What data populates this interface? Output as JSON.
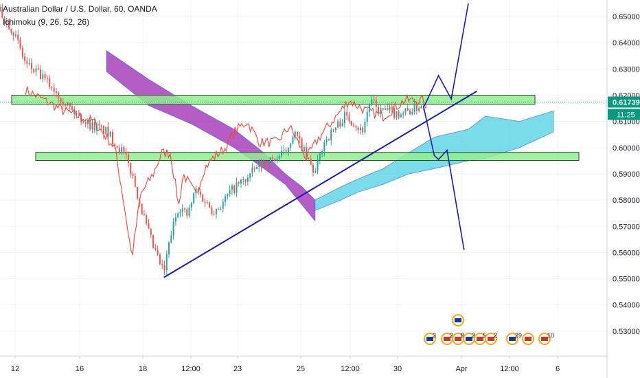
{
  "header": {
    "title": "Australian Dollar / U.S. Dollar, 60, OANDA",
    "indicator": "Ichimoku (9, 26, 52, 26)"
  },
  "price_tag": {
    "price": "0.61739",
    "countdown": "11:25"
  },
  "colors": {
    "candle_up": "#26a69a",
    "candle_down": "#ef5350",
    "cloud_bull": "#4dd0e1",
    "cloud_bear": "#9c27b0",
    "cloud_edge": "#2962ff",
    "lagging": "#f44336",
    "zone_fill": "#90ee90",
    "drawing": "#1a1ab5",
    "price_tag": "#089981",
    "grid": "#f0f3fa"
  },
  "chart_data": {
    "type": "candlestick",
    "symbol": "AUDUSD",
    "interval": "60",
    "y_axis": {
      "min": 0.52,
      "max": 0.655,
      "ticks": [
        "0.65000",
        "0.64000",
        "0.63000",
        "0.62000",
        "0.61000",
        "0.60000",
        "0.59000",
        "0.58000",
        "0.57000",
        "0.56000",
        "0.55000",
        "0.54000",
        "0.53000"
      ]
    },
    "x_axis": {
      "labels": [
        "12",
        "16",
        "18",
        "12:00",
        "23",
        "25",
        "12:00",
        "30",
        "Apr",
        "12:00",
        "6"
      ]
    },
    "last_price": 0.61739,
    "close_path": [
      [
        0,
        0.652
      ],
      [
        0.03,
        0.645
      ],
      [
        0.06,
        0.632
      ],
      [
        0.09,
        0.628
      ],
      [
        0.13,
        0.622
      ],
      [
        0.17,
        0.614
      ],
      [
        0.21,
        0.609
      ],
      [
        0.25,
        0.606
      ],
      [
        0.29,
        0.598
      ],
      [
        0.31,
        0.59
      ],
      [
        0.34,
        0.572
      ],
      [
        0.36,
        0.562
      ],
      [
        0.385,
        0.552
      ],
      [
        0.4,
        0.566
      ],
      [
        0.42,
        0.578
      ],
      [
        0.44,
        0.574
      ],
      [
        0.46,
        0.584
      ],
      [
        0.48,
        0.58
      ],
      [
        0.5,
        0.576
      ],
      [
        0.52,
        0.578
      ],
      [
        0.54,
        0.583
      ],
      [
        0.56,
        0.586
      ],
      [
        0.58,
        0.588
      ],
      [
        0.6,
        0.592
      ],
      [
        0.62,
        0.594
      ],
      [
        0.65,
        0.596
      ],
      [
        0.67,
        0.598
      ],
      [
        0.69,
        0.606
      ],
      [
        0.71,
        0.6
      ],
      [
        0.72,
        0.596
      ],
      [
        0.74,
        0.59
      ],
      [
        0.76,
        0.602
      ],
      [
        0.79,
        0.608
      ],
      [
        0.81,
        0.612
      ],
      [
        0.83,
        0.61
      ],
      [
        0.85,
        0.606
      ],
      [
        0.87,
        0.618
      ],
      [
        0.89,
        0.614
      ],
      [
        0.91,
        0.614
      ],
      [
        0.93,
        0.613
      ],
      [
        0.96,
        0.614
      ],
      [
        1.0,
        0.617
      ]
    ],
    "lagging_path": [
      [
        0.06,
        0.622
      ],
      [
        0.15,
        0.614
      ],
      [
        0.22,
        0.61
      ],
      [
        0.27,
        0.6
      ],
      [
        0.29,
        0.58
      ],
      [
        0.31,
        0.558
      ],
      [
        0.33,
        0.582
      ],
      [
        0.36,
        0.59
      ],
      [
        0.38,
        0.598
      ],
      [
        0.4,
        0.598
      ],
      [
        0.42,
        0.578
      ],
      [
        0.43,
        0.59
      ],
      [
        0.46,
        0.582
      ],
      [
        0.48,
        0.592
      ],
      [
        0.5,
        0.596
      ],
      [
        0.53,
        0.6
      ],
      [
        0.55,
        0.606
      ],
      [
        0.58,
        0.61
      ],
      [
        0.61,
        0.602
      ],
      [
        0.65,
        0.602
      ],
      [
        0.68,
        0.608
      ],
      [
        0.72,
        0.596
      ],
      [
        0.75,
        0.604
      ],
      [
        0.78,
        0.61
      ],
      [
        0.82,
        0.618
      ],
      [
        0.86,
        0.614
      ],
      [
        0.9,
        0.612
      ],
      [
        0.95,
        0.618
      ],
      [
        1.0,
        0.618
      ]
    ],
    "cloud_bear": {
      "upper": [
        [
          0.25,
          0.637
        ],
        [
          0.35,
          0.626
        ],
        [
          0.45,
          0.616
        ],
        [
          0.55,
          0.607
        ],
        [
          0.62,
          0.598
        ],
        [
          0.67,
          0.59
        ],
        [
          0.71,
          0.585
        ],
        [
          0.74,
          0.58
        ]
      ],
      "lower": [
        [
          0.25,
          0.629
        ],
        [
          0.35,
          0.616
        ],
        [
          0.45,
          0.609
        ],
        [
          0.55,
          0.6
        ],
        [
          0.62,
          0.592
        ],
        [
          0.67,
          0.586
        ],
        [
          0.71,
          0.578
        ],
        [
          0.74,
          0.572
        ]
      ]
    },
    "cloud_bull": {
      "upper": [
        [
          0.74,
          0.58
        ],
        [
          0.8,
          0.585
        ],
        [
          0.84,
          0.588
        ],
        [
          0.9,
          0.592
        ],
        [
          0.96,
          0.598
        ],
        [
          1.02,
          0.604
        ],
        [
          1.1,
          0.607
        ],
        [
          1.14,
          0.612
        ],
        [
          1.22,
          0.61
        ],
        [
          1.3,
          0.614
        ]
      ],
      "lower": [
        [
          0.74,
          0.576
        ],
        [
          0.8,
          0.58
        ],
        [
          0.84,
          0.583
        ],
        [
          0.9,
          0.586
        ],
        [
          0.96,
          0.59
        ],
        [
          1.02,
          0.592
        ],
        [
          1.1,
          0.595
        ],
        [
          1.14,
          0.596
        ],
        [
          1.22,
          0.6
        ],
        [
          1.3,
          0.606
        ]
      ]
    },
    "zones": [
      {
        "name": "resistance-zone",
        "y_top": 0.62,
        "y_bottom": 0.6165
      },
      {
        "name": "support-zone",
        "y_top": 0.5982,
        "y_bottom": 0.5951
      }
    ],
    "trendline": [
      [
        0.385,
        0.5505
      ],
      [
        1.12,
        0.6215
      ]
    ],
    "scenario_up": [
      [
        1.0,
        0.617
      ],
      [
        1.03,
        0.6275
      ],
      [
        1.06,
        0.6185
      ],
      [
        1.1,
        0.655
      ]
    ],
    "scenario_down": [
      [
        1.0,
        0.617
      ],
      [
        0.995,
        0.6155
      ],
      [
        1.02,
        0.597
      ],
      [
        1.03,
        0.5955
      ],
      [
        1.05,
        0.599
      ],
      [
        1.09,
        0.561
      ]
    ],
    "event_flags": [
      {
        "label": "3",
        "slot": 0
      },
      {
        "label": "2",
        "slot": 1
      },
      {
        "label": "8",
        "slot": 2
      },
      {
        "label": "3",
        "slot": 3
      },
      {
        "label": "5",
        "slot": 4
      },
      {
        "label": "2",
        "slot": 5
      },
      {
        "label": "29",
        "slot": 6
      },
      {
        "label": "",
        "slot": 7
      },
      {
        "label": "10",
        "slot": 8
      }
    ]
  }
}
